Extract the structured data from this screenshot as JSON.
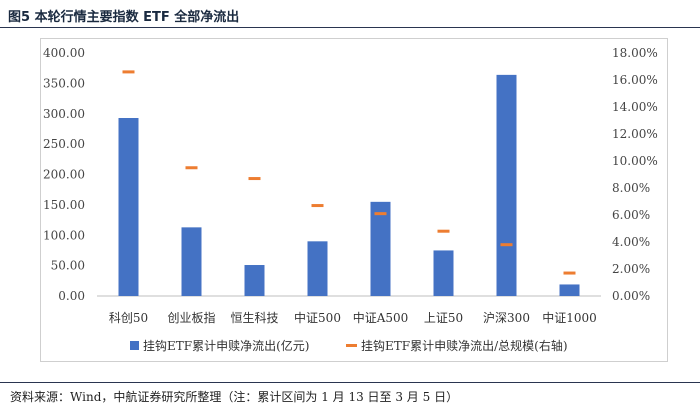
{
  "figure": {
    "title": "图5  本轮行情主要指数 ETF 全部净流出",
    "source": "资料来源：Wind，中航证券研究所整理（注：累计区间为 1 月 13 日至 3 月 5 日）"
  },
  "chart_data": {
    "type": "bar",
    "categories": [
      "科创50",
      "创业板指",
      "恒生科技",
      "中证500",
      "中证A500",
      "上证50",
      "沪深300",
      "中证1000"
    ],
    "series": [
      {
        "name": "挂钩ETF累计申赎净流出(亿元)",
        "type": "bar",
        "axis": "left",
        "color": "#4472C4",
        "values": [
          293,
          113,
          51,
          90,
          155,
          75,
          364,
          19
        ]
      },
      {
        "name": "挂钩ETF累计申赎净流出/总规模(右轴)",
        "type": "marker",
        "axis": "right",
        "color": "#ED7D31",
        "values": [
          16.6,
          9.5,
          8.7,
          6.7,
          6.1,
          4.8,
          3.8,
          1.7
        ]
      }
    ],
    "y_left": {
      "min": 0,
      "max": 400,
      "step": 50,
      "ticks": [
        "0.00",
        "50.00",
        "100.00",
        "150.00",
        "200.00",
        "250.00",
        "300.00",
        "350.00",
        "400.00"
      ]
    },
    "y_right": {
      "min": 0,
      "max": 18,
      "step": 2,
      "ticks": [
        "0.00%",
        "2.00%",
        "4.00%",
        "6.00%",
        "8.00%",
        "10.00%",
        "12.00%",
        "14.00%",
        "16.00%",
        "18.00%"
      ]
    },
    "grid": false,
    "legend_position": "bottom"
  }
}
